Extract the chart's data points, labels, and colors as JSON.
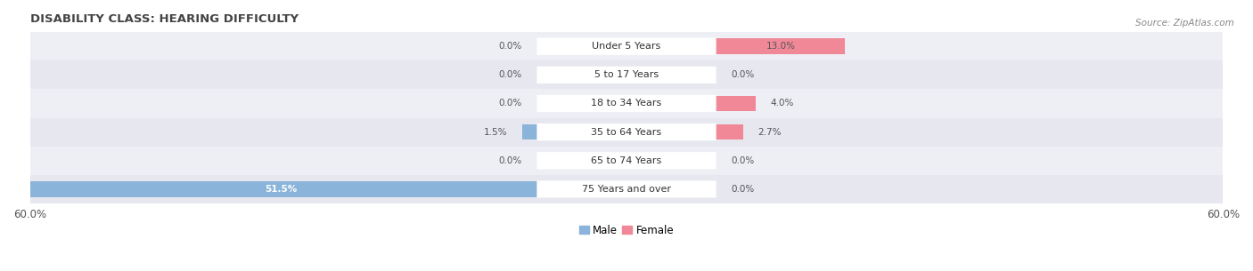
{
  "title": "DISABILITY CLASS: HEARING DIFFICULTY",
  "source": "Source: ZipAtlas.com",
  "categories": [
    "Under 5 Years",
    "5 to 17 Years",
    "18 to 34 Years",
    "35 to 64 Years",
    "65 to 74 Years",
    "75 Years and over"
  ],
  "male_values": [
    0.0,
    0.0,
    0.0,
    1.5,
    0.0,
    51.5
  ],
  "female_values": [
    13.0,
    0.0,
    4.0,
    2.7,
    0.0,
    0.0
  ],
  "male_color": "#8ab4d9",
  "female_color": "#f08898",
  "row_bg_even": "#eeeff5",
  "row_bg_odd": "#e6e7ef",
  "x_max": 60.0,
  "legend_male": "Male",
  "legend_female": "Female",
  "fig_width": 14.06,
  "fig_height": 3.05,
  "background_color": "#ffffff",
  "label_color": "#555555",
  "title_color": "#444444",
  "source_color": "#888888"
}
